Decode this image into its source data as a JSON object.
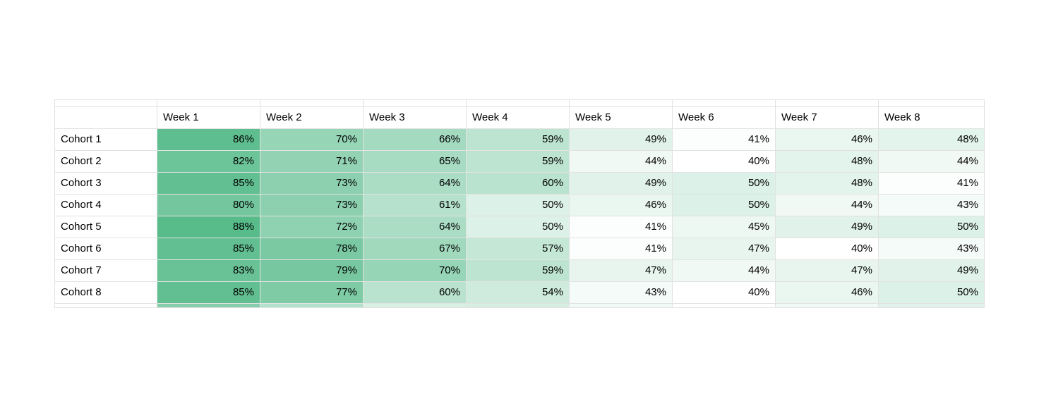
{
  "chart_data": {
    "type": "heatmap",
    "title": "",
    "corner_label": "",
    "columns": [
      "Week 1",
      "Week 2",
      "Week 3",
      "Week 4",
      "Week 5",
      "Week 6",
      "Week 7",
      "Week 8"
    ],
    "rows": [
      "Cohort 1",
      "Cohort 2",
      "Cohort 3",
      "Cohort 4",
      "Cohort 5",
      "Cohort 6",
      "Cohort 7",
      "Cohort 8"
    ],
    "values": [
      [
        86,
        70,
        66,
        59,
        49,
        41,
        46,
        48
      ],
      [
        82,
        71,
        65,
        59,
        44,
        40,
        48,
        44
      ],
      [
        85,
        73,
        64,
        60,
        49,
        50,
        48,
        41
      ],
      [
        80,
        73,
        61,
        50,
        46,
        50,
        44,
        43
      ],
      [
        88,
        72,
        64,
        50,
        41,
        45,
        49,
        50
      ],
      [
        85,
        78,
        67,
        57,
        41,
        47,
        40,
        43
      ],
      [
        83,
        79,
        70,
        59,
        47,
        44,
        47,
        49
      ],
      [
        85,
        77,
        60,
        54,
        43,
        40,
        46,
        50
      ]
    ],
    "value_suffix": "%",
    "color_scale": {
      "min_value": 40,
      "max_value": 88,
      "min_color": "#ffffff",
      "max_color": "#57bb8a"
    },
    "gridline_color": "#e2e2e2",
    "text_color": "#000000",
    "background_color": "#ffffff",
    "partial_bottom_row_colors": [
      "#ffffff",
      "#85cdad",
      "#b4e1cc",
      "#d9f0e5",
      "#d7efe3",
      "#f2faf6",
      "#ffffff",
      "#f2faf6",
      "#e0f2ea"
    ],
    "legend_position": "none",
    "grid": true
  }
}
